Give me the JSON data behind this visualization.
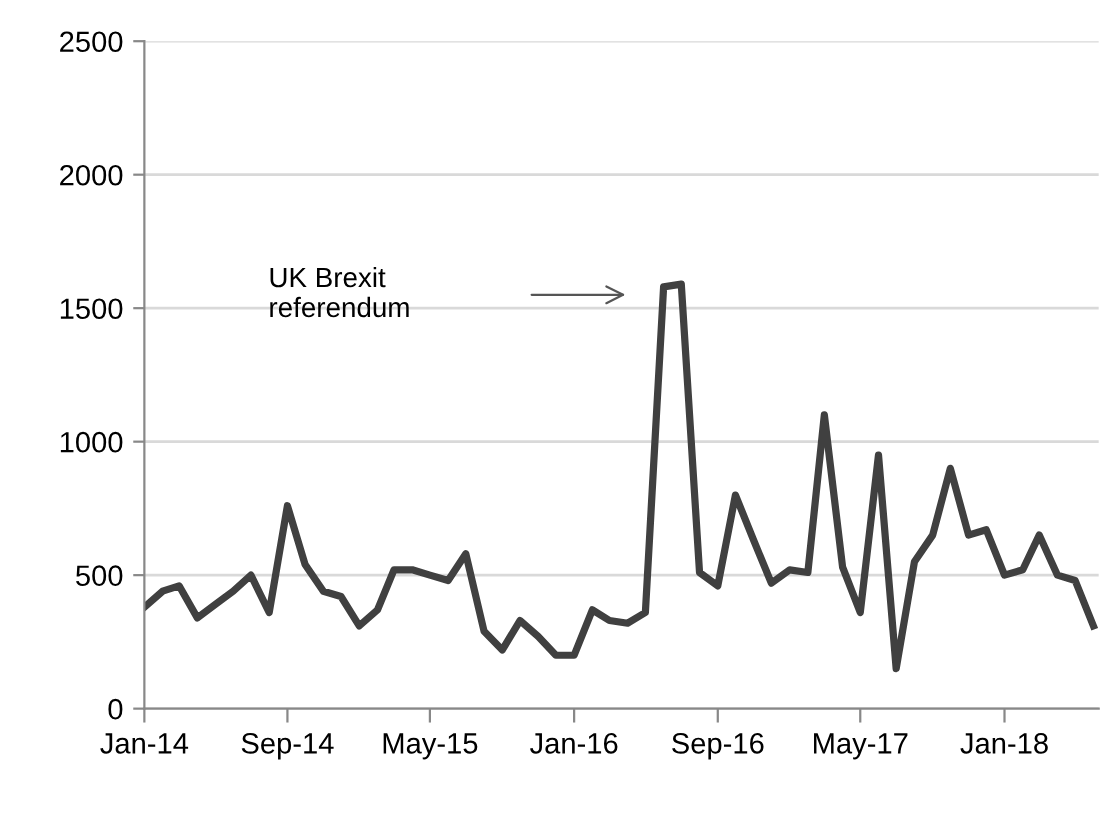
{
  "chart_data": {
    "type": "line",
    "x": [
      "2014-01",
      "2014-02",
      "2014-03",
      "2014-04",
      "2014-05",
      "2014-06",
      "2014-07",
      "2014-08",
      "2014-09",
      "2014-10",
      "2014-11",
      "2014-12",
      "2015-01",
      "2015-02",
      "2015-03",
      "2015-04",
      "2015-05",
      "2015-06",
      "2015-07",
      "2015-08",
      "2015-09",
      "2015-10",
      "2015-11",
      "2015-12",
      "2016-01",
      "2016-02",
      "2016-03",
      "2016-04",
      "2016-05",
      "2016-06",
      "2016-07",
      "2016-08",
      "2016-09",
      "2016-10",
      "2016-11",
      "2016-12",
      "2017-01",
      "2017-02",
      "2017-03",
      "2017-04",
      "2017-05",
      "2017-06",
      "2017-07",
      "2017-08",
      "2017-09",
      "2017-10",
      "2017-11",
      "2017-12",
      "2018-01",
      "2018-02",
      "2018-03",
      "2018-04",
      "2018-05",
      "2018-06"
    ],
    "series": [
      {
        "color": "#404040",
        "values": [
          380,
          440,
          460,
          340,
          390,
          440,
          500,
          360,
          760,
          540,
          440,
          420,
          310,
          370,
          520,
          520,
          500,
          480,
          580,
          290,
          220,
          330,
          270,
          200,
          200,
          370,
          330,
          320,
          360,
          1580,
          1590,
          510,
          460,
          800,
          630,
          470,
          520,
          510,
          1100,
          530,
          360,
          950,
          150,
          550,
          650,
          900,
          650,
          670,
          500,
          520,
          650,
          500,
          480,
          310
        ]
      }
    ],
    "xlim": [
      "2014-01",
      "2018-06-10"
    ],
    "xticks": [
      {
        "value": "2014-01",
        "label": "Jan-14"
      },
      {
        "value": "2014-09",
        "label": "Sep-14"
      },
      {
        "value": "2015-05",
        "label": "May-15"
      },
      {
        "value": "2016-01",
        "label": "Jan-16"
      },
      {
        "value": "2016-09",
        "label": "Sep-16"
      },
      {
        "value": "2017-05",
        "label": "May-17"
      },
      {
        "value": "2018-01",
        "label": "Jan-18"
      }
    ],
    "ylim": [
      0,
      2500
    ],
    "yticks": [
      0,
      500,
      1000,
      1500,
      2000,
      2500
    ],
    "grid": "y",
    "legend": false,
    "marker": "none",
    "line_style": "solid",
    "annotations": [
      "UK Brexit\nreferendum"
    ]
  }
}
